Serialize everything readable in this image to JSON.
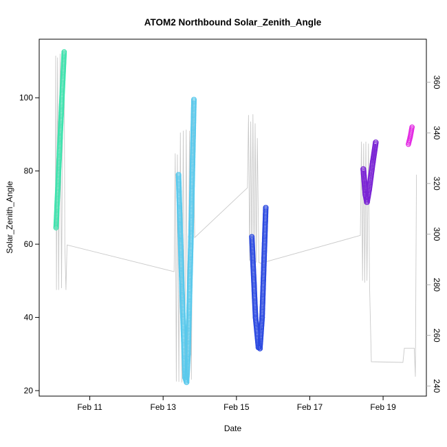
{
  "chart_data": {
    "type": "scatter",
    "title": "ATOM2 Northbound Solar_Zenith_Angle",
    "xlabel": "Date",
    "ylabel": "Solar_Zenith_Angle",
    "x_domain": [
      9.62,
      20.18
    ],
    "y_domain": [
      18.5,
      116
    ],
    "y2_domain": [
      236,
      377
    ],
    "x_ticks": [
      {
        "v": 11,
        "label": "Feb 11"
      },
      {
        "v": 13,
        "label": "Feb 13"
      },
      {
        "v": 15,
        "label": "Feb 15"
      },
      {
        "v": 17,
        "label": "Feb 17"
      },
      {
        "v": 19,
        "label": "Feb 19"
      }
    ],
    "y_ticks": [
      20,
      40,
      60,
      80,
      100
    ],
    "y2_ticks": [
      240,
      260,
      280,
      300,
      320,
      340,
      360
    ],
    "grid": false,
    "legend": "none",
    "colors": {
      "axis": "#000000",
      "y2_axis": "#b0b0b0",
      "trace_line": "#c9c9c9",
      "background": "#ffffff"
    },
    "trace_line": {
      "name": "zenith-angle-trace",
      "points": [
        [
          10.06,
          64
        ],
        [
          10.07,
          111.5
        ],
        [
          10.09,
          47.5
        ],
        [
          10.12,
          111
        ],
        [
          10.15,
          47.5
        ],
        [
          10.19,
          112
        ],
        [
          10.23,
          48
        ],
        [
          10.27,
          112.5
        ],
        [
          10.3,
          112.8
        ],
        [
          10.32,
          59.5
        ],
        [
          10.35,
          47.5
        ],
        [
          10.38,
          59.8
        ],
        [
          13.3,
          52.5
        ],
        [
          13.33,
          84.8
        ],
        [
          13.36,
          22.5
        ],
        [
          13.39,
          84.5
        ],
        [
          13.43,
          22.4
        ],
        [
          13.47,
          90.5
        ],
        [
          13.51,
          22.2
        ],
        [
          13.55,
          91
        ],
        [
          13.59,
          22.1
        ],
        [
          13.63,
          91.3
        ],
        [
          13.67,
          22.4
        ],
        [
          13.72,
          91
        ],
        [
          13.77,
          23
        ],
        [
          13.82,
          99.5
        ],
        [
          13.86,
          61.8
        ],
        [
          15.3,
          75.4
        ],
        [
          15.33,
          95.3
        ],
        [
          15.36,
          55.5
        ],
        [
          15.39,
          93.5
        ],
        [
          15.42,
          55.2
        ],
        [
          15.45,
          95.5
        ],
        [
          15.48,
          55
        ],
        [
          15.51,
          93
        ],
        [
          15.54,
          55
        ],
        [
          15.57,
          89
        ],
        [
          15.61,
          55
        ],
        [
          15.66,
          54.8
        ],
        [
          18.38,
          62.4
        ],
        [
          18.41,
          88
        ],
        [
          18.44,
          50
        ],
        [
          18.47,
          87.5
        ],
        [
          18.5,
          49.5
        ],
        [
          18.53,
          88
        ],
        [
          18.56,
          50
        ],
        [
          18.6,
          87.5
        ],
        [
          18.63,
          48.6
        ],
        [
          18.68,
          27.9
        ],
        [
          19.54,
          27.7
        ],
        [
          19.58,
          31.6
        ],
        [
          19.85,
          31.6
        ],
        [
          19.88,
          23.8
        ],
        [
          19.91,
          79
        ]
      ]
    },
    "series": [
      {
        "name": "pass-1-springgreen",
        "color": "#3fe3ae",
        "marker_radius": 3.3,
        "path": [
          [
            10.08,
            64.5
          ],
          [
            10.19,
            89
          ],
          [
            10.3,
            112.5
          ]
        ]
      },
      {
        "name": "pass-2-skyblue",
        "color": "#59c9ec",
        "marker_radius": 3.4,
        "path": [
          [
            13.42,
            79
          ],
          [
            13.52,
            46
          ],
          [
            13.6,
            23.5
          ],
          [
            13.64,
            22.3
          ],
          [
            13.68,
            30
          ],
          [
            13.76,
            62
          ],
          [
            13.84,
            99.5
          ]
        ]
      },
      {
        "name": "pass-3-blue",
        "color": "#2b49e0",
        "marker_radius": 3.4,
        "path": [
          [
            15.42,
            62
          ],
          [
            15.52,
            40
          ],
          [
            15.6,
            31.8
          ],
          [
            15.64,
            31.5
          ],
          [
            15.7,
            40
          ],
          [
            15.8,
            70
          ]
        ]
      },
      {
        "name": "pass-4-purple",
        "color": "#7a24d4",
        "marker_radius": 3.6,
        "path": [
          [
            18.46,
            80.5
          ],
          [
            18.52,
            73.5
          ],
          [
            18.56,
            71.5
          ],
          [
            18.62,
            75
          ],
          [
            18.72,
            82.5
          ],
          [
            18.8,
            87.8
          ]
        ]
      },
      {
        "name": "pass-5-magenta",
        "color": "#e32be3",
        "marker_radius": 3.2,
        "path": [
          [
            19.69,
            87.3
          ],
          [
            19.74,
            89.3
          ],
          [
            19.79,
            92
          ]
        ]
      }
    ]
  }
}
